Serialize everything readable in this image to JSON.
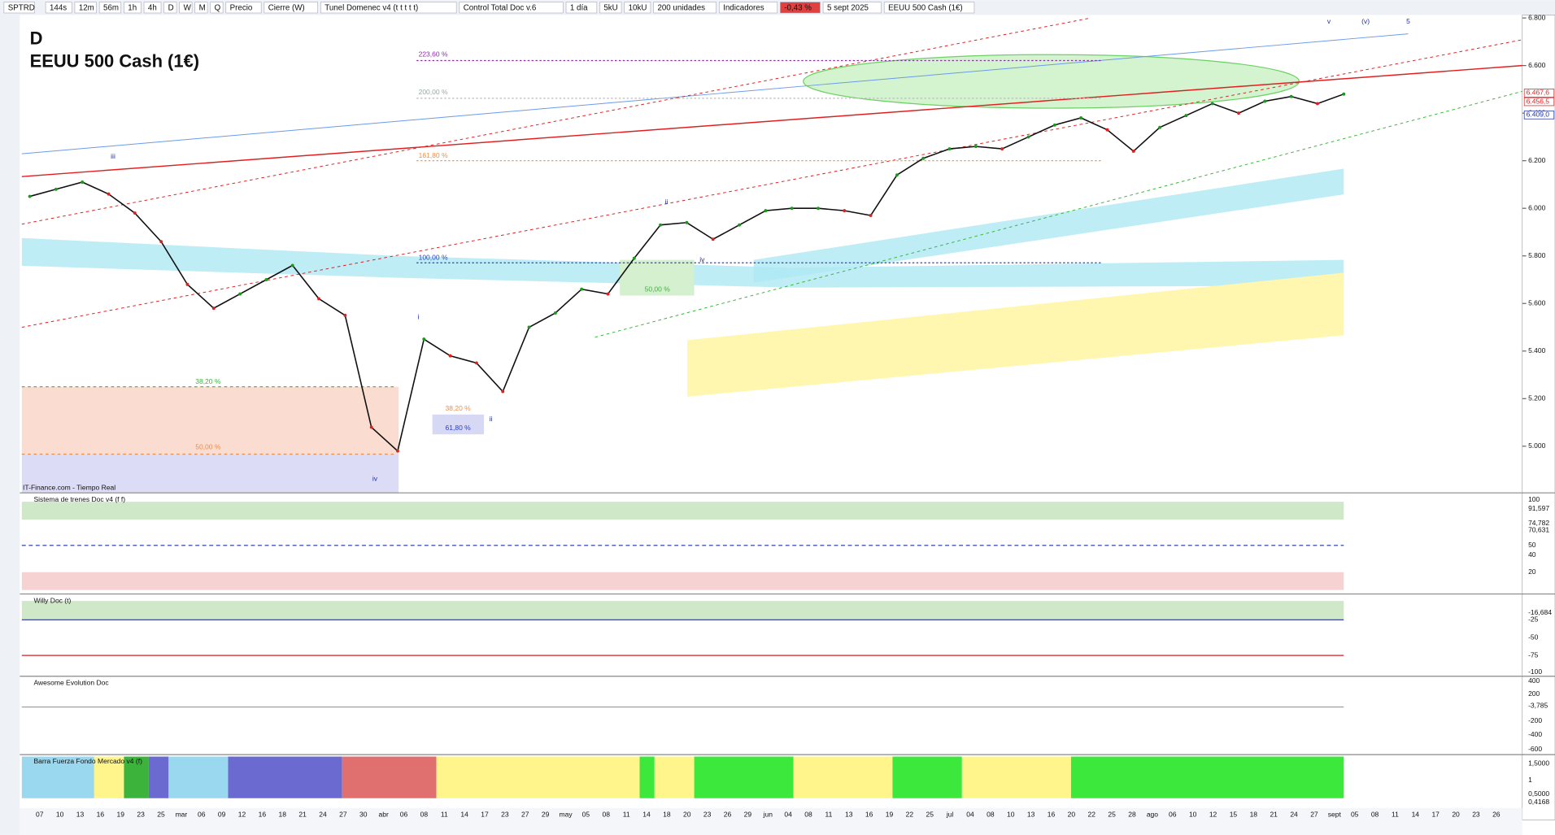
{
  "toolbar": {
    "symbol": "SPTRD",
    "intervals": [
      "144s",
      "12m",
      "56m",
      "1h",
      "4h",
      "D",
      "W",
      "M",
      "Q"
    ],
    "items": [
      "Precio",
      "Cierre (W)",
      "Tunel Domenec v4 (t t t t t)",
      "Control Total Doc v.6"
    ],
    "period": "1 día",
    "sizes": [
      "5kU",
      "10kU"
    ],
    "units": "200 unidades",
    "indicators": "Indicadores",
    "change": "-0,43 %",
    "date": "5 sept 2025",
    "instrument": "EEUU 500 Cash (1€)"
  },
  "chart_data": {
    "type": "line",
    "title": "D",
    "subtitle": "EEUU 500 Cash (1€)",
    "color": "#111111",
    "values": [
      6050,
      6080,
      6110,
      6060,
      5980,
      5860,
      5680,
      5580,
      5640,
      5700,
      5760,
      5620,
      5550,
      5080,
      4980,
      5450,
      5380,
      5350,
      5230,
      5500,
      5560,
      5660,
      5640,
      5790,
      5930,
      5940,
      5870,
      5930,
      5990,
      6000,
      6000,
      5990,
      5970,
      6140,
      6210,
      6250,
      6260,
      6250,
      6300,
      6350,
      6380,
      6330,
      6240,
      6340,
      6390,
      6440,
      6400,
      6450,
      6470,
      6440,
      6480
    ],
    "ylim": [
      4804,
      6800
    ],
    "yticks": [
      {
        "value": 5000,
        "label": "5.000"
      },
      {
        "value": 5200,
        "label": "5.200"
      },
      {
        "value": 5400,
        "label": "5.400"
      },
      {
        "value": 5600,
        "label": "5.600"
      },
      {
        "value": 5800,
        "label": "5.800"
      },
      {
        "value": 6000,
        "label": "6.000"
      },
      {
        "value": 6200,
        "label": "6.200"
      },
      {
        "value": 6400,
        "label": "6.400"
      },
      {
        "value": 6600,
        "label": "6.600"
      },
      {
        "value": 6800,
        "label": "6.800"
      }
    ],
    "price_labels": [
      {
        "value": 6467.6,
        "label": "6.467,6"
      },
      {
        "value": 6456.5,
        "label": "6.456,5"
      },
      {
        "value": 6409,
        "label": "6.409,0"
      }
    ],
    "grid": false,
    "fib_labels": [
      "223,60 %",
      "200,00 %",
      "161,80 %",
      "100,00 %",
      "38,20 %",
      "50,00 %",
      "61,80 %",
      "38,20 %",
      "50,00 %"
    ],
    "wave_labels": [
      "iii",
      "i",
      "ii",
      "iv",
      "ii",
      "iv",
      "v",
      "(v)",
      "5"
    ],
    "source": "IT-Finance.com - Tiempo Real",
    "x_labels": [
      "07",
      "10",
      "13",
      "16",
      "19",
      "23",
      "25",
      "mar",
      "06",
      "09",
      "12",
      "16",
      "18",
      "21",
      "24",
      "27",
      "30",
      "abr",
      "06",
      "08",
      "11",
      "14",
      "17",
      "23",
      "27",
      "29",
      "may",
      "05",
      "08",
      "11",
      "14",
      "18",
      "20",
      "23",
      "26",
      "29",
      "jun",
      "04",
      "08",
      "11",
      "13",
      "16",
      "19",
      "22",
      "25",
      "jul",
      "04",
      "08",
      "10",
      "13",
      "16",
      "20",
      "22",
      "25",
      "28",
      "ago",
      "06",
      "10",
      "12",
      "15",
      "18",
      "21",
      "24",
      "27",
      "sept",
      "05",
      "08",
      "11",
      "14",
      "17",
      "20",
      "23",
      "26"
    ]
  },
  "panels": [
    {
      "title": "Sistema de trenes Doc v4 (f f)",
      "ticks": [
        "100",
        "91,597",
        "74,782",
        "70,631",
        "50",
        "40",
        "20"
      ]
    },
    {
      "title": "Willy Doc (t)",
      "ticks": [
        "-16,684",
        "-25",
        "-50",
        "-75",
        "-100"
      ]
    },
    {
      "title": "Awesome Evolution Doc",
      "ticks": [
        "400",
        "200",
        "-3,785",
        "-200",
        "-400",
        "-600"
      ]
    },
    {
      "title": "Barra Fuerza Fondo Mercado v4 (f)",
      "ticks": [
        "1,5000",
        "1",
        "0,5000",
        "0,4168"
      ]
    }
  ]
}
